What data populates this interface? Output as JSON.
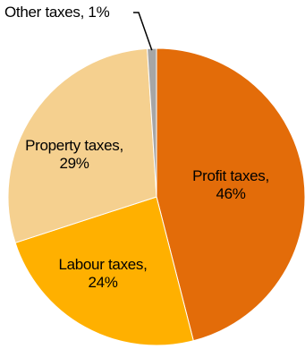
{
  "chart_data": {
    "type": "pie",
    "title": "",
    "slices": [
      {
        "label": "Profit taxes",
        "value": 46,
        "display": "46%",
        "color": "#E36C09"
      },
      {
        "label": "Labour taxes",
        "value": 24,
        "display": "24%",
        "color": "#FFB000"
      },
      {
        "label": "Property taxes",
        "value": 29,
        "display": "29%",
        "color": "#F5D08F"
      },
      {
        "label": "Other taxes",
        "value": 1,
        "display": "1%",
        "color": "#A6A6A6"
      }
    ],
    "start": "12 o'clock",
    "direction": "clockwise",
    "slice_border_color": "#ffffff",
    "leader_line_color": "#000000"
  }
}
